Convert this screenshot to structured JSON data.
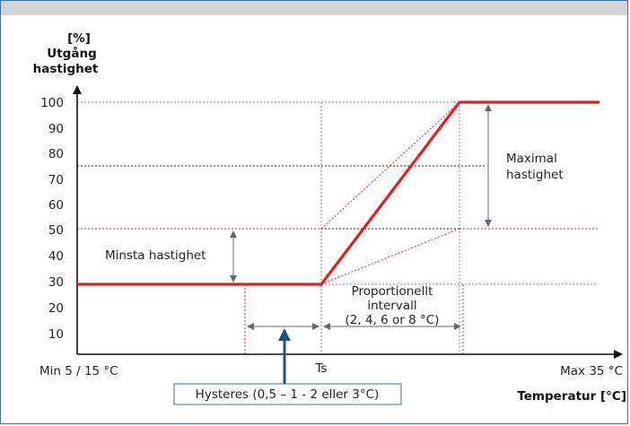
{
  "axes": {
    "y_label_line1": "[%]",
    "y_label_line2": "Utgång",
    "y_label_line3": "hastighet",
    "x_label": "Temperatur [°C]",
    "x_min_label": "Min 5 / 15 °C",
    "x_mid_label": "Ts",
    "x_max_label": "Max 35 °C",
    "y_ticks": [
      "100",
      "90",
      "80",
      "70",
      "60",
      "50",
      "40",
      "30",
      "20",
      "10"
    ]
  },
  "annotations": {
    "min_speed": "Minsta hastighet",
    "max_speed_line1": "Maximal",
    "max_speed_line2": "hastighet",
    "prop_line1": "Proportionellt",
    "prop_line2": "intervall",
    "prop_line3": "(2, 4, 6 or 8 °C)",
    "hysteresis": "Hysteres (0,5 – 1 - 2 eller 3°C)"
  },
  "colors": {
    "curve": "#e0201f",
    "guide_red": "#e0201f",
    "arrow_blue": "#1f4e8c",
    "frame": "#3a6fa5",
    "dimension": "#666666"
  }
}
